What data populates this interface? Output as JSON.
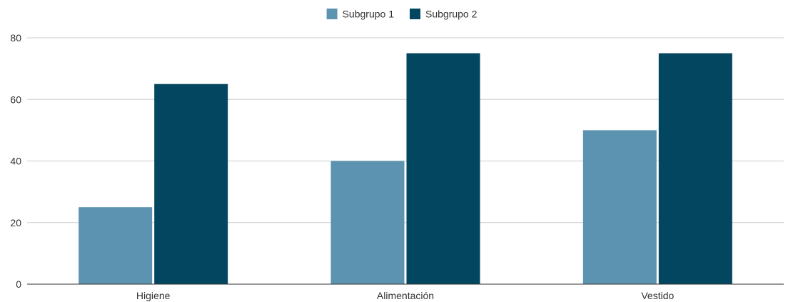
{
  "chart_data": {
    "type": "bar",
    "title": "",
    "xlabel": "",
    "ylabel": "",
    "categories": [
      "Higiene",
      "Alimentación",
      "Vestido"
    ],
    "series": [
      {
        "name": "Subgrupo 1",
        "values": [
          25,
          40,
          50
        ],
        "color": "#5b93b0"
      },
      {
        "name": "Subgrupo 2",
        "values": [
          65,
          75,
          75
        ],
        "color": "#024660"
      }
    ],
    "ylim": [
      0,
      80
    ],
    "yticks": [
      0,
      20,
      40,
      60,
      80
    ],
    "grid": true,
    "legend_position": "top-center"
  }
}
